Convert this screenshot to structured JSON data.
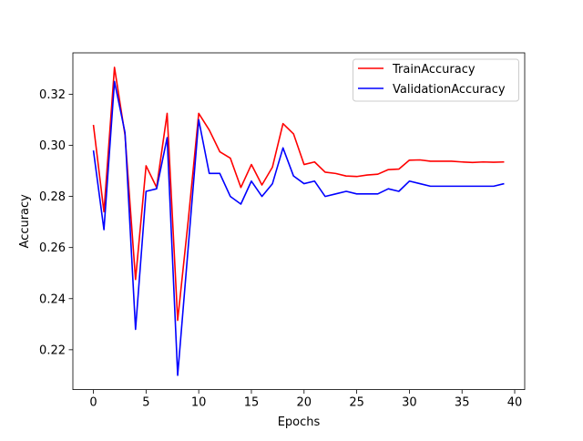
{
  "chart_data": {
    "type": "line",
    "title": "",
    "xlabel": "Epochs",
    "ylabel": "Accuracy",
    "xlim": [
      -1.95,
      40.95
    ],
    "ylim": [
      0.2044,
      0.3362
    ],
    "xticks": [
      0,
      5,
      10,
      15,
      20,
      25,
      30,
      35,
      40
    ],
    "yticks": [
      0.22,
      0.24,
      0.26,
      0.28,
      0.3,
      0.32
    ],
    "ytick_labels": [
      "0.22",
      "0.24",
      "0.26",
      "0.28",
      "0.30",
      "0.32"
    ],
    "grid": false,
    "legend_position": "top-right",
    "x": [
      0,
      1,
      2,
      3,
      4,
      5,
      6,
      7,
      8,
      9,
      10,
      11,
      12,
      13,
      14,
      15,
      16,
      17,
      18,
      19,
      20,
      21,
      22,
      23,
      24,
      25,
      26,
      27,
      28,
      29,
      30,
      31,
      32,
      33,
      34,
      35,
      36,
      37,
      38,
      39
    ],
    "series": [
      {
        "name": "TrainAccuracy",
        "color": "#ff0000",
        "values": [
          0.308,
          0.274,
          0.3305,
          0.304,
          0.2475,
          0.292,
          0.2835,
          0.3125,
          0.2315,
          0.2705,
          0.3125,
          0.306,
          0.2975,
          0.295,
          0.2835,
          0.2925,
          0.2845,
          0.2915,
          0.3085,
          0.3045,
          0.2925,
          0.2935,
          0.2895,
          0.289,
          0.288,
          0.2878,
          0.2884,
          0.2887,
          0.2905,
          0.2907,
          0.2942,
          0.2943,
          0.2938,
          0.2938,
          0.2938,
          0.2935,
          0.2933,
          0.2935,
          0.2934,
          0.2935
        ]
      },
      {
        "name": "ValidationAccuracy",
        "color": "#0000ff",
        "values": [
          0.298,
          0.267,
          0.325,
          0.305,
          0.228,
          0.282,
          0.283,
          0.303,
          0.21,
          0.26,
          0.31,
          0.289,
          0.289,
          0.28,
          0.277,
          0.286,
          0.28,
          0.285,
          0.299,
          0.288,
          0.285,
          0.286,
          0.28,
          0.281,
          0.282,
          0.281,
          0.281,
          0.281,
          0.283,
          0.282,
          0.286,
          0.285,
          0.284,
          0.284,
          0.284,
          0.284,
          0.284,
          0.284,
          0.284,
          0.285
        ]
      }
    ]
  }
}
